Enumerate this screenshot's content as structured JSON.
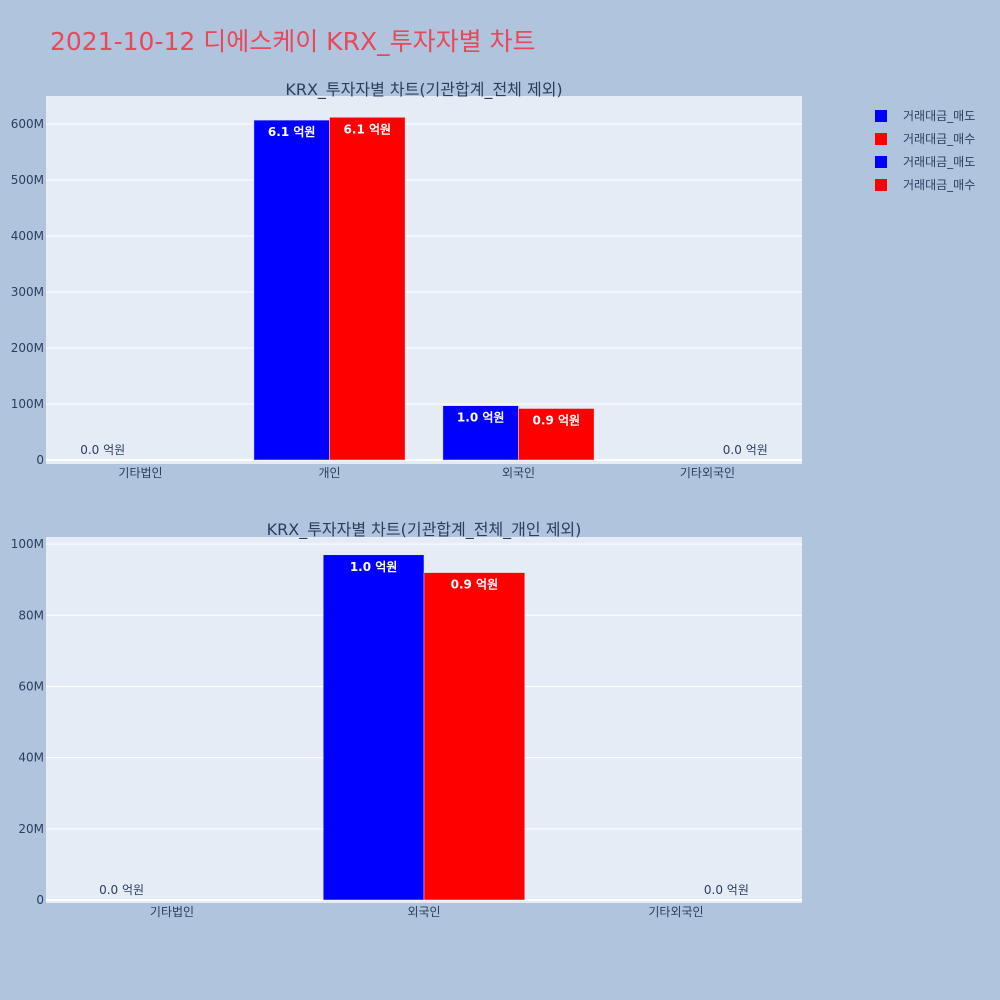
{
  "page_title": "2021-10-12 디에스케이 KRX_투자자별 차트",
  "colors": {
    "sell": "#0000ff",
    "buy": "#ff0000",
    "plot_bg": "#e5ecf6",
    "paper_bg": "#b0c4de",
    "title": "#e8485a"
  },
  "legend": [
    {
      "label": "거래대금_매도",
      "color": "#0000ff"
    },
    {
      "label": "거래대금_매수",
      "color": "#ff0000"
    },
    {
      "label": "거래대금_매도",
      "color": "#0000ff"
    },
    {
      "label": "거래대금_매수",
      "color": "#ff0000"
    }
  ],
  "chart_data": [
    {
      "type": "bar",
      "title": "KRX_투자자별 차트(기관합계_전체 제외)",
      "categories": [
        "기타법인",
        "개인",
        "외국인",
        "기타외국인"
      ],
      "series": [
        {
          "name": "거래대금_매도",
          "color": "#0000ff",
          "values": [
            0,
            607000000,
            97000000,
            0
          ],
          "labels": [
            "0.0 억원",
            "6.1 억원",
            "1.0 억원",
            ""
          ]
        },
        {
          "name": "거래대금_매수",
          "color": "#ff0000",
          "values": [
            0,
            612000000,
            92000000,
            0
          ],
          "labels": [
            "",
            "6.1 억원",
            "0.9 억원",
            "0.0 억원"
          ]
        }
      ],
      "yticks": [
        0,
        100000000,
        200000000,
        300000000,
        400000000,
        500000000,
        600000000
      ],
      "ytick_labels": [
        "0",
        "100M",
        "200M",
        "300M",
        "400M",
        "500M",
        "600M"
      ],
      "ylim": [
        0,
        650000000
      ],
      "grid": true
    },
    {
      "type": "bar",
      "title": "KRX_투자자별 차트(기관합계_전체_개인 제외)",
      "categories": [
        "기타법인",
        "외국인",
        "기타외국인"
      ],
      "series": [
        {
          "name": "거래대금_매도",
          "color": "#0000ff",
          "values": [
            0,
            97000000,
            0
          ],
          "labels": [
            "0.0 억원",
            "1.0 억원",
            ""
          ]
        },
        {
          "name": "거래대금_매수",
          "color": "#ff0000",
          "values": [
            0,
            92000000,
            0
          ],
          "labels": [
            "",
            "0.9 억원",
            "0.0 억원"
          ]
        }
      ],
      "yticks": [
        0,
        20000000,
        40000000,
        60000000,
        80000000,
        100000000
      ],
      "ytick_labels": [
        "0",
        "20M",
        "40M",
        "60M",
        "80M",
        "100M"
      ],
      "ylim": [
        0,
        102000000
      ],
      "grid": true
    }
  ]
}
